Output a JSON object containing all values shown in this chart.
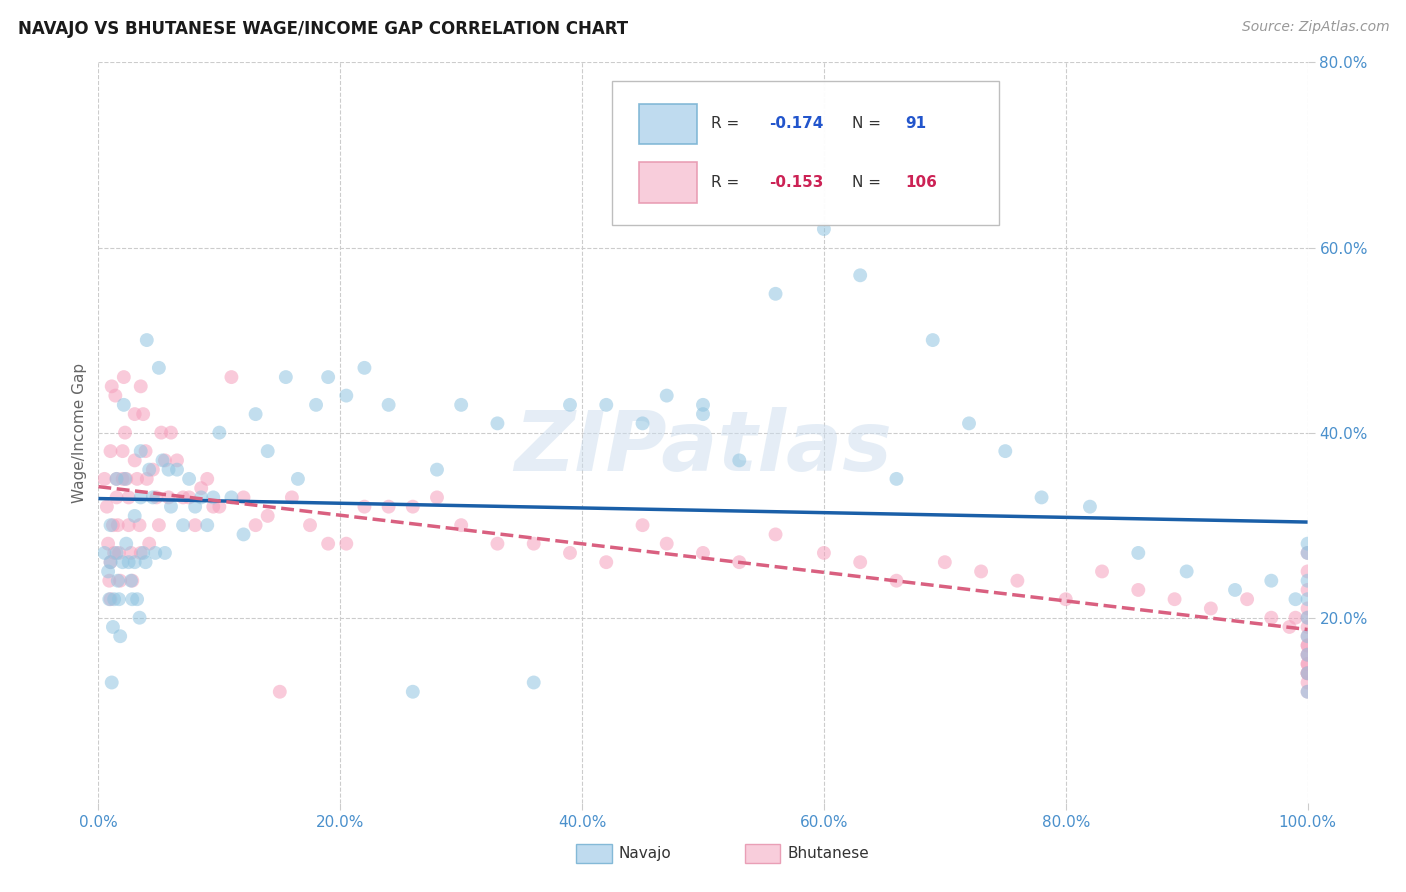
{
  "title": "NAVAJO VS BHUTANESE WAGE/INCOME GAP CORRELATION CHART",
  "source": "Source: ZipAtlas.com",
  "ylabel": "Wage/Income Gap",
  "navajo_color": "#90c4e0",
  "bhutanese_color": "#f5a0bc",
  "trend_navajo_color": "#1a5fa8",
  "trend_bhutanese_color": "#d96080",
  "background_color": "#ffffff",
  "grid_color": "#cccccc",
  "xlim": [
    0.0,
    1.0
  ],
  "ylim": [
    0.0,
    0.8
  ],
  "xticks": [
    0.0,
    0.2,
    0.4,
    0.6,
    0.8,
    1.0
  ],
  "yticks": [
    0.2,
    0.4,
    0.6,
    0.8
  ],
  "xticklabels": [
    "0.0%",
    "20.0%",
    "40.0%",
    "60.0%",
    "80.0%",
    "100.0%"
  ],
  "yticklabels": [
    "20.0%",
    "40.0%",
    "60.0%",
    "80.0%"
  ],
  "navajo_x": [
    0.005,
    0.008,
    0.009,
    0.01,
    0.01,
    0.011,
    0.012,
    0.013,
    0.015,
    0.015,
    0.016,
    0.017,
    0.018,
    0.02,
    0.021,
    0.022,
    0.023,
    0.025,
    0.027,
    0.028,
    0.03,
    0.03,
    0.032,
    0.034,
    0.035,
    0.035,
    0.037,
    0.039,
    0.04,
    0.042,
    0.045,
    0.047,
    0.05,
    0.053,
    0.055,
    0.058,
    0.06,
    0.065,
    0.07,
    0.075,
    0.08,
    0.085,
    0.09,
    0.095,
    0.1,
    0.11,
    0.12,
    0.13,
    0.14,
    0.155,
    0.165,
    0.18,
    0.19,
    0.205,
    0.22,
    0.24,
    0.26,
    0.28,
    0.3,
    0.33,
    0.36,
    0.39,
    0.42,
    0.45,
    0.47,
    0.5,
    0.5,
    0.53,
    0.56,
    0.6,
    0.63,
    0.66,
    0.69,
    0.72,
    0.75,
    0.78,
    0.82,
    0.86,
    0.9,
    0.94,
    0.97,
    0.99,
    1.0,
    1.0,
    1.0,
    1.0,
    1.0,
    1.0,
    1.0,
    1.0,
    1.0
  ],
  "navajo_y": [
    0.27,
    0.25,
    0.22,
    0.26,
    0.3,
    0.13,
    0.19,
    0.22,
    0.35,
    0.27,
    0.24,
    0.22,
    0.18,
    0.26,
    0.43,
    0.35,
    0.28,
    0.26,
    0.24,
    0.22,
    0.31,
    0.26,
    0.22,
    0.2,
    0.38,
    0.33,
    0.27,
    0.26,
    0.5,
    0.36,
    0.33,
    0.27,
    0.47,
    0.37,
    0.27,
    0.36,
    0.32,
    0.36,
    0.3,
    0.35,
    0.32,
    0.33,
    0.3,
    0.33,
    0.4,
    0.33,
    0.29,
    0.42,
    0.38,
    0.46,
    0.35,
    0.43,
    0.46,
    0.44,
    0.47,
    0.43,
    0.12,
    0.36,
    0.43,
    0.41,
    0.13,
    0.43,
    0.43,
    0.41,
    0.44,
    0.42,
    0.43,
    0.37,
    0.55,
    0.62,
    0.57,
    0.35,
    0.5,
    0.41,
    0.38,
    0.33,
    0.32,
    0.27,
    0.25,
    0.23,
    0.24,
    0.22,
    0.28,
    0.27,
    0.24,
    0.22,
    0.2,
    0.18,
    0.16,
    0.14,
    0.12
  ],
  "bhutanese_x": [
    0.005,
    0.007,
    0.008,
    0.009,
    0.01,
    0.01,
    0.01,
    0.011,
    0.012,
    0.013,
    0.014,
    0.015,
    0.015,
    0.016,
    0.017,
    0.018,
    0.02,
    0.02,
    0.021,
    0.022,
    0.023,
    0.025,
    0.025,
    0.027,
    0.028,
    0.03,
    0.03,
    0.032,
    0.034,
    0.035,
    0.035,
    0.037,
    0.039,
    0.04,
    0.042,
    0.045,
    0.048,
    0.05,
    0.052,
    0.055,
    0.058,
    0.06,
    0.065,
    0.07,
    0.075,
    0.08,
    0.085,
    0.09,
    0.095,
    0.1,
    0.11,
    0.12,
    0.13,
    0.14,
    0.15,
    0.16,
    0.175,
    0.19,
    0.205,
    0.22,
    0.24,
    0.26,
    0.28,
    0.3,
    0.33,
    0.36,
    0.39,
    0.42,
    0.45,
    0.47,
    0.5,
    0.53,
    0.56,
    0.6,
    0.63,
    0.66,
    0.7,
    0.73,
    0.76,
    0.8,
    0.83,
    0.86,
    0.89,
    0.92,
    0.95,
    0.97,
    0.985,
    0.99,
    1.0,
    1.0,
    1.0,
    1.0,
    1.0,
    1.0,
    1.0,
    1.0,
    1.0,
    1.0,
    1.0,
    1.0,
    1.0,
    1.0,
    1.0,
    1.0,
    1.0,
    1.0
  ],
  "bhutanese_y": [
    0.35,
    0.32,
    0.28,
    0.24,
    0.22,
    0.26,
    0.38,
    0.45,
    0.3,
    0.27,
    0.44,
    0.35,
    0.33,
    0.3,
    0.27,
    0.24,
    0.38,
    0.35,
    0.46,
    0.4,
    0.35,
    0.33,
    0.3,
    0.27,
    0.24,
    0.42,
    0.37,
    0.35,
    0.3,
    0.27,
    0.45,
    0.42,
    0.38,
    0.35,
    0.28,
    0.36,
    0.33,
    0.3,
    0.4,
    0.37,
    0.33,
    0.4,
    0.37,
    0.33,
    0.33,
    0.3,
    0.34,
    0.35,
    0.32,
    0.32,
    0.46,
    0.33,
    0.3,
    0.31,
    0.12,
    0.33,
    0.3,
    0.28,
    0.28,
    0.32,
    0.32,
    0.32,
    0.33,
    0.3,
    0.28,
    0.28,
    0.27,
    0.26,
    0.3,
    0.28,
    0.27,
    0.26,
    0.29,
    0.27,
    0.26,
    0.24,
    0.26,
    0.25,
    0.24,
    0.22,
    0.25,
    0.23,
    0.22,
    0.21,
    0.22,
    0.2,
    0.19,
    0.2,
    0.27,
    0.25,
    0.23,
    0.21,
    0.2,
    0.19,
    0.18,
    0.17,
    0.16,
    0.16,
    0.15,
    0.14,
    0.17,
    0.15,
    0.14,
    0.14,
    0.13,
    0.12
  ],
  "watermark": "ZIPatlas",
  "marker_size": 100,
  "marker_alpha": 0.55,
  "trend_linewidth": 2.5
}
